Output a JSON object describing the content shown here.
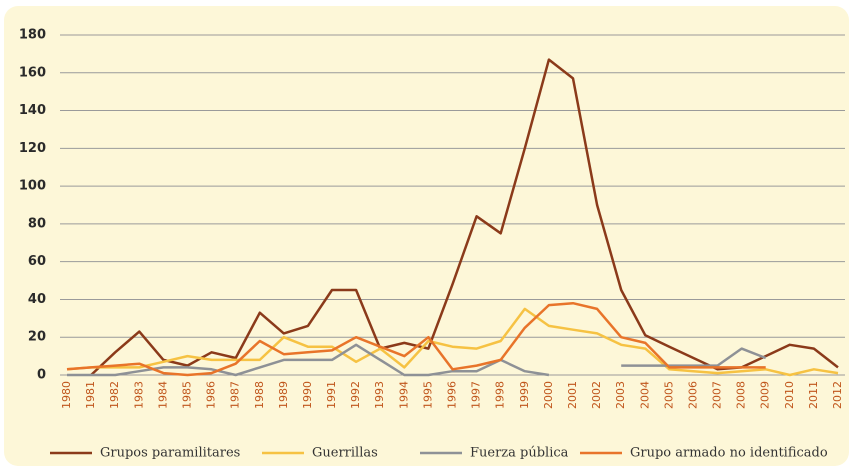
{
  "chart_data": {
    "type": "line",
    "categories": [
      "1980",
      "1981",
      "1982",
      "1983",
      "1984",
      "1985",
      "1986",
      "1987",
      "1988",
      "1989",
      "1990",
      "1991",
      "1992",
      "1993",
      "1994",
      "1995",
      "1996",
      "1997",
      "1998",
      "1999",
      "2000",
      "2001",
      "2002",
      "2003",
      "2004",
      "2005",
      "2006",
      "2007",
      "2008",
      "2009",
      "2010",
      "2011",
      "2012"
    ],
    "series": [
      {
        "name": "Grupos paramilitares",
        "color": "#8b3a1a",
        "values": [
          null,
          0,
          12,
          23,
          8,
          5,
          12,
          9,
          33,
          22,
          26,
          45,
          45,
          14,
          17,
          14,
          48,
          84,
          75,
          120,
          167,
          157,
          90,
          45,
          21,
          15,
          9,
          3,
          4,
          10,
          16,
          14,
          4
        ]
      },
      {
        "name": "Guerrillas",
        "color": "#f6c243",
        "values": [
          3,
          4,
          4,
          4,
          7,
          10,
          8,
          8,
          8,
          20,
          15,
          15,
          7,
          14,
          4,
          18,
          15,
          14,
          18,
          35,
          26,
          24,
          22,
          16,
          14,
          3,
          2,
          1,
          2,
          3,
          0,
          3,
          1
        ]
      },
      {
        "name": "Fuerza pública",
        "color": "#8e9196",
        "values": [
          0,
          0,
          0,
          2,
          4,
          4,
          3,
          0,
          4,
          8,
          8,
          8,
          16,
          8,
          0,
          0,
          2,
          2,
          8,
          2,
          0,
          null,
          null,
          5,
          5,
          5,
          5,
          5,
          14,
          9,
          null,
          null,
          null
        ]
      },
      {
        "name": "Grupo armado no identificado",
        "color": "#e8742a",
        "values": [
          3,
          4,
          5,
          6,
          1,
          0,
          1,
          6,
          18,
          11,
          12,
          13,
          20,
          15,
          10,
          20,
          3,
          5,
          8,
          25,
          37,
          38,
          35,
          20,
          17,
          4,
          4,
          4,
          4,
          4,
          null,
          null,
          null
        ]
      }
    ],
    "ylim": [
      0,
      180
    ],
    "yticks": [
      0,
      20,
      40,
      60,
      80,
      100,
      120,
      140,
      160,
      180
    ],
    "grid": true,
    "legend": "bottom"
  }
}
